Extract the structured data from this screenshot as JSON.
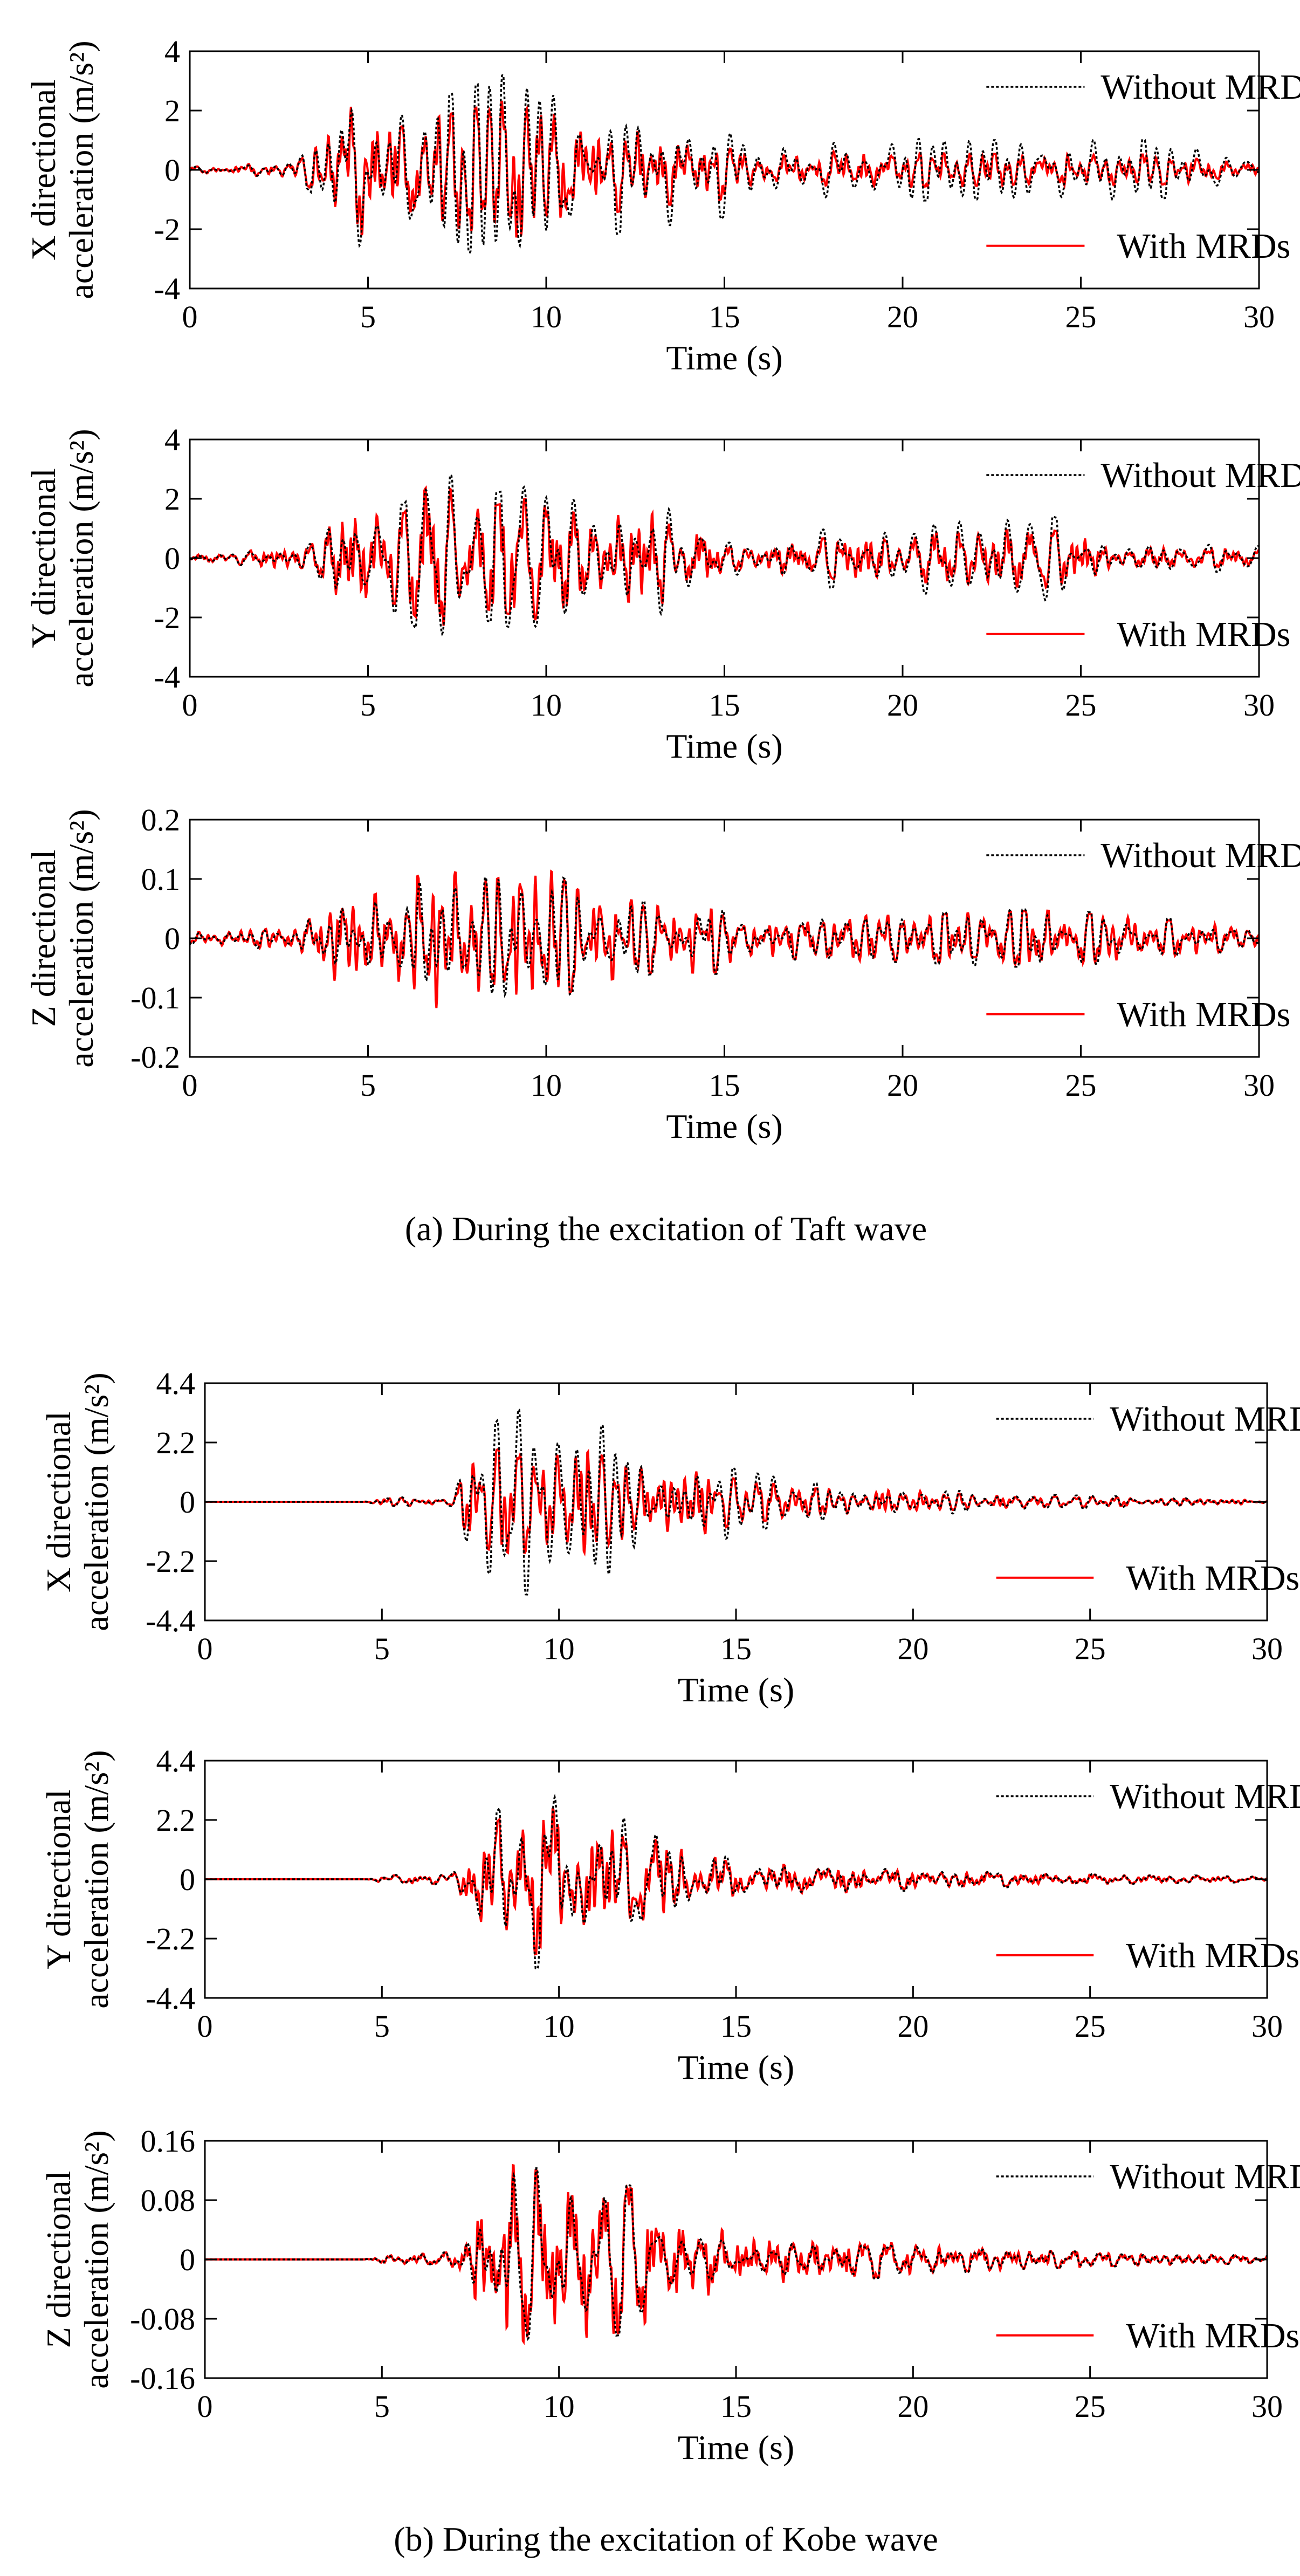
{
  "captions": {
    "a": "(a) During the excitation of Taft wave",
    "b": "(b) During the excitation of Kobe wave"
  },
  "colors": {
    "without": "#000000",
    "with": "#ff0000"
  },
  "chart_data": [
    {
      "id": "taft-x",
      "type": "line",
      "group": "a",
      "xlabel": "Time (s)",
      "ylabel_line1": "X directional",
      "ylabel_line2": "acceleration (m/s²)",
      "xlim": [
        0,
        30
      ],
      "ylim": [
        -4,
        4
      ],
      "xticks": [
        0,
        5,
        10,
        15,
        20,
        25,
        30
      ],
      "yticks": [
        -4,
        -2,
        0,
        2,
        4
      ],
      "ytick_labels": [
        "-4",
        "-2",
        "0",
        "2",
        "4"
      ],
      "legend": {
        "position": "right",
        "without_label": "Without MRDs",
        "with_label": "With MRDs"
      },
      "envelope": [
        [
          0,
          0.1
        ],
        [
          3,
          0.3
        ],
        [
          3.8,
          1.2
        ],
        [
          4.3,
          3.2
        ],
        [
          5.5,
          2.3
        ],
        [
          7,
          2.4
        ],
        [
          8.8,
          3.2
        ],
        [
          9.7,
          3.3
        ],
        [
          11,
          2.5
        ],
        [
          13,
          1.8
        ],
        [
          14.5,
          2.0
        ],
        [
          16,
          0.7
        ],
        [
          18,
          1.1
        ],
        [
          22,
          1.0
        ],
        [
          25,
          1.0
        ],
        [
          27,
          1.0
        ],
        [
          30,
          0.6
        ]
      ],
      "reduction": [
        [
          0,
          1.0
        ],
        [
          4,
          0.8
        ],
        [
          10,
          0.7
        ],
        [
          15,
          0.6
        ],
        [
          20,
          0.55
        ],
        [
          30,
          0.5
        ]
      ],
      "series": [
        {
          "name": "Without MRDs",
          "style": "dotted"
        },
        {
          "name": "With MRDs",
          "style": "solid"
        }
      ]
    },
    {
      "id": "taft-y",
      "type": "line",
      "group": "a",
      "xlabel": "Time (s)",
      "ylabel_line1": "Y directional",
      "ylabel_line2": "acceleration (m/s²)",
      "xlim": [
        0,
        30
      ],
      "ylim": [
        -4,
        4
      ],
      "xticks": [
        0,
        5,
        10,
        15,
        20,
        25,
        30
      ],
      "yticks": [
        -4,
        -2,
        0,
        2,
        4
      ],
      "ytick_labels": [
        "-4",
        "-2",
        "0",
        "2",
        "4"
      ],
      "legend": {
        "position": "right",
        "without_label": "Without MRDs",
        "with_label": "With MRDs"
      },
      "envelope": [
        [
          0,
          0.1
        ],
        [
          3,
          0.4
        ],
        [
          4.5,
          2.0
        ],
        [
          6,
          1.8
        ],
        [
          6.9,
          3.3
        ],
        [
          8,
          2.0
        ],
        [
          9.8,
          2.6
        ],
        [
          11,
          1.8
        ],
        [
          12.8,
          2.0
        ],
        [
          14,
          2.2
        ],
        [
          15,
          0.5
        ],
        [
          18,
          1.0
        ],
        [
          22,
          1.3
        ],
        [
          24,
          1.5
        ],
        [
          26,
          0.6
        ],
        [
          30,
          0.4
        ]
      ],
      "reduction": [
        [
          0,
          1.0
        ],
        [
          5,
          0.85
        ],
        [
          10,
          0.8
        ],
        [
          15,
          0.7
        ],
        [
          30,
          0.65
        ]
      ],
      "series": [
        {
          "name": "Without MRDs",
          "style": "dotted"
        },
        {
          "name": "With MRDs",
          "style": "solid"
        }
      ]
    },
    {
      "id": "taft-z",
      "type": "line",
      "group": "a",
      "xlabel": "Time (s)",
      "ylabel_line1": "Z directional",
      "ylabel_line2": "acceleration (m/s²)",
      "xlim": [
        0,
        30
      ],
      "ylim": [
        -0.2,
        0.2
      ],
      "xticks": [
        0,
        5,
        10,
        15,
        20,
        25,
        30
      ],
      "yticks": [
        -0.2,
        -0.1,
        0,
        0.1,
        0.2
      ],
      "ytick_labels": [
        "-0.2",
        "-0.1",
        "0",
        "0.1",
        "0.2"
      ],
      "legend": {
        "position": "right",
        "without_label": "Without MRDs",
        "with_label": "With MRDs"
      },
      "envelope": [
        [
          0,
          0.01
        ],
        [
          3,
          0.02
        ],
        [
          4,
          0.08
        ],
        [
          5,
          0.07
        ],
        [
          6.9,
          0.12
        ],
        [
          8.5,
          0.1
        ],
        [
          9.8,
          0.13
        ],
        [
          11,
          0.08
        ],
        [
          13,
          0.06
        ],
        [
          14.8,
          0.06
        ],
        [
          15.5,
          0.03
        ],
        [
          18,
          0.04
        ],
        [
          20,
          0.04
        ],
        [
          24,
          0.05
        ],
        [
          30,
          0.02
        ]
      ],
      "reduction": [
        [
          0,
          1.0
        ],
        [
          30,
          0.92
        ]
      ],
      "series": [
        {
          "name": "Without MRDs",
          "style": "dotted"
        },
        {
          "name": "With MRDs",
          "style": "solid"
        }
      ]
    },
    {
      "id": "kobe-x",
      "type": "line",
      "group": "b",
      "xlabel": "Time (s)",
      "ylabel_line1": "X directional",
      "ylabel_line2": "acceleration (m/s²)",
      "xlim": [
        0,
        30
      ],
      "ylim": [
        -4.4,
        4.4
      ],
      "xticks": [
        0,
        5,
        10,
        15,
        20,
        25,
        30
      ],
      "yticks": [
        -4.4,
        -2.2,
        0,
        2.2,
        4.4
      ],
      "ytick_labels": [
        "-4.4",
        "-2.2",
        "0",
        "2.2",
        "4.4"
      ],
      "legend": {
        "position": "right",
        "without_label": "Without MRDs",
        "with_label": "With MRDs"
      },
      "envelope": [
        [
          0,
          0.0
        ],
        [
          4.5,
          0.0
        ],
        [
          5,
          0.15
        ],
        [
          7,
          0.2
        ],
        [
          7.5,
          1.8
        ],
        [
          8.5,
          3.4
        ],
        [
          10.2,
          3.5
        ],
        [
          11,
          3.0
        ],
        [
          12,
          2.2
        ],
        [
          13.3,
          2.2
        ],
        [
          15,
          1.2
        ],
        [
          17,
          0.7
        ],
        [
          20,
          0.6
        ],
        [
          22,
          0.3
        ],
        [
          30,
          0.1
        ]
      ],
      "reduction": [
        [
          0,
          1.0
        ],
        [
          7,
          0.8
        ],
        [
          9,
          0.55
        ],
        [
          11,
          0.6
        ],
        [
          15,
          0.7
        ],
        [
          30,
          0.8
        ]
      ],
      "series": [
        {
          "name": "Without MRDs",
          "style": "dotted"
        },
        {
          "name": "With MRDs",
          "style": "solid"
        }
      ]
    },
    {
      "id": "kobe-y",
      "type": "line",
      "group": "b",
      "xlabel": "Time (s)",
      "ylabel_line1": "Y directional",
      "ylabel_line2": "acceleration (m/s²)",
      "xlim": [
        0,
        30
      ],
      "ylim": [
        -4.4,
        4.4
      ],
      "xticks": [
        0,
        5,
        10,
        15,
        20,
        25,
        30
      ],
      "yticks": [
        -4.4,
        -2.2,
        0,
        2.2,
        4.4
      ],
      "ytick_labels": [
        "-4.4",
        "-2.2",
        "0",
        "2.2",
        "4.4"
      ],
      "legend": {
        "position": "right",
        "without_label": "Without MRDs",
        "with_label": "With MRDs"
      },
      "envelope": [
        [
          0,
          0.0
        ],
        [
          4.5,
          0.0
        ],
        [
          5,
          0.15
        ],
        [
          7,
          0.2
        ],
        [
          7.5,
          1.4
        ],
        [
          8.9,
          3.5
        ],
        [
          10.2,
          3.0
        ],
        [
          11,
          2.8
        ],
        [
          12,
          2.2
        ],
        [
          13.3,
          1.5
        ],
        [
          15,
          0.7
        ],
        [
          18,
          0.6
        ],
        [
          20,
          0.4
        ],
        [
          25,
          0.2
        ],
        [
          30,
          0.1
        ]
      ],
      "reduction": [
        [
          0,
          1.0
        ],
        [
          8,
          0.85
        ],
        [
          12,
          0.8
        ],
        [
          30,
          0.85
        ]
      ],
      "series": [
        {
          "name": "Without MRDs",
          "style": "dotted"
        },
        {
          "name": "With MRDs",
          "style": "solid"
        }
      ]
    },
    {
      "id": "kobe-z",
      "type": "line",
      "group": "b",
      "xlabel": "Time (s)",
      "ylabel_line1": "Z directional",
      "ylabel_line2": "acceleration (m/s²)",
      "xlim": [
        0,
        30
      ],
      "ylim": [
        -0.16,
        0.16
      ],
      "xticks": [
        0,
        5,
        10,
        15,
        20,
        25,
        30
      ],
      "yticks": [
        -0.16,
        -0.08,
        0,
        0.08,
        0.16
      ],
      "ytick_labels": [
        "-0.16",
        "-0.08",
        "0",
        "0.08",
        "0.16"
      ],
      "legend": {
        "position": "right",
        "without_label": "Without MRDs",
        "with_label": "With MRDs"
      },
      "envelope": [
        [
          0,
          0.0
        ],
        [
          4.5,
          0.0
        ],
        [
          5,
          0.005
        ],
        [
          7,
          0.01
        ],
        [
          7.5,
          0.06
        ],
        [
          8.7,
          0.13
        ],
        [
          10.6,
          0.11
        ],
        [
          12,
          0.1
        ],
        [
          13.5,
          0.06
        ],
        [
          15,
          0.04
        ],
        [
          18,
          0.03
        ],
        [
          20,
          0.02
        ],
        [
          25,
          0.01
        ],
        [
          30,
          0.005
        ]
      ],
      "reduction": [
        [
          0,
          1.0
        ],
        [
          30,
          0.92
        ]
      ],
      "series": [
        {
          "name": "Without MRDs",
          "style": "dotted"
        },
        {
          "name": "With MRDs",
          "style": "solid"
        }
      ]
    }
  ]
}
